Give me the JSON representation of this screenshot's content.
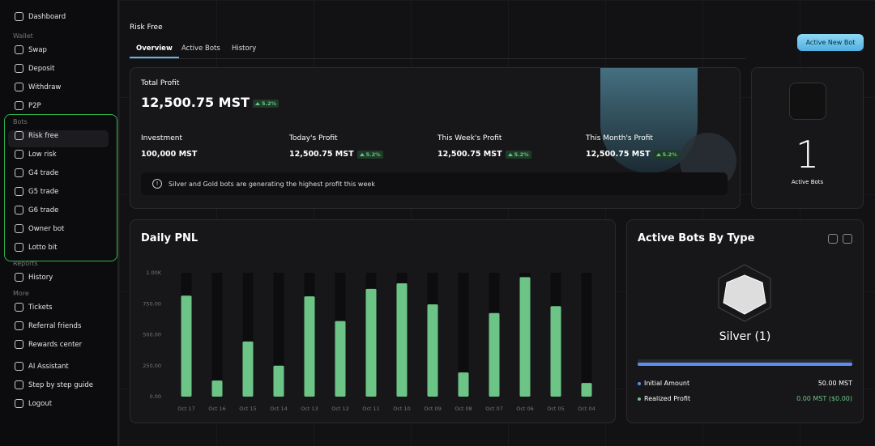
{
  "sidebar": {
    "top": "Dashboard",
    "sections": [
      {
        "title": "Wallet",
        "items": [
          "Swap",
          "Deposit",
          "Withdraw",
          "P2P"
        ]
      },
      {
        "title": "Bots",
        "items": [
          "Risk free",
          "Low risk",
          "G4 trade",
          "G5 trade",
          "G6 trade",
          "Owner bot",
          "Lotto bit"
        ]
      },
      {
        "title": "Reports",
        "items": [
          "History"
        ]
      },
      {
        "title": "More",
        "items": [
          "Tickets",
          "Referral friends",
          "Rewards center"
        ]
      }
    ],
    "bottom": [
      "AI Assistant",
      "Step by step guide",
      "Logout"
    ]
  },
  "header": {
    "title": "Risk Free",
    "tabs": [
      "Overview",
      "Active Bots",
      "History"
    ],
    "button": "Active New Bot"
  },
  "profit": {
    "label": "Total Profit",
    "value": "12,500.75 MST",
    "change": "5.2%",
    "stats": [
      {
        "label": "Investment",
        "value": "100,000 MST"
      },
      {
        "label": "Today's Profit",
        "value": "12,500.75 MST",
        "change": "5.2%"
      },
      {
        "label": "This Week's Profit",
        "value": "12,500.75 MST",
        "change": "5.2%"
      },
      {
        "label": "This Month's Profit",
        "value": "12,500.75 MST",
        "change": "5.2%"
      }
    ],
    "notice": "Silver and Gold bots are generating the highest profit this week"
  },
  "active_bots": {
    "count": "1",
    "label": "Active Bots"
  },
  "chart_data": {
    "type": "bar",
    "title": "Daily PNL",
    "categories": [
      "Oct 17",
      "Oct 16",
      "Oct 15",
      "Oct 14",
      "Oct 13",
      "Oct 12",
      "Oct 11",
      "Oct 10",
      "Oct 09",
      "Oct 08",
      "Oct 07",
      "Oct 06",
      "Oct 05",
      "Oct 04"
    ],
    "values": [
      815,
      130,
      445,
      250,
      810,
      610,
      870,
      915,
      745,
      195,
      675,
      965,
      730,
      110
    ],
    "color": "#6cc486",
    "ylim": [
      0,
      1000
    ],
    "yticks": [
      {
        "value": 0,
        "label": "0.00"
      },
      {
        "value": 250,
        "label": "250.00"
      },
      {
        "value": 500,
        "label": "500.00"
      },
      {
        "value": 750,
        "label": "750.00"
      },
      {
        "value": 1000,
        "label": "1.00K"
      }
    ]
  },
  "bots_by_type": {
    "title": "Active Bots By Type",
    "name": "Silver (1)",
    "rows": [
      {
        "label": "Initial Amount",
        "value": "50.00 MST"
      },
      {
        "label": "Realized Profit",
        "value": "0.00 MST ($0.00)"
      }
    ]
  }
}
